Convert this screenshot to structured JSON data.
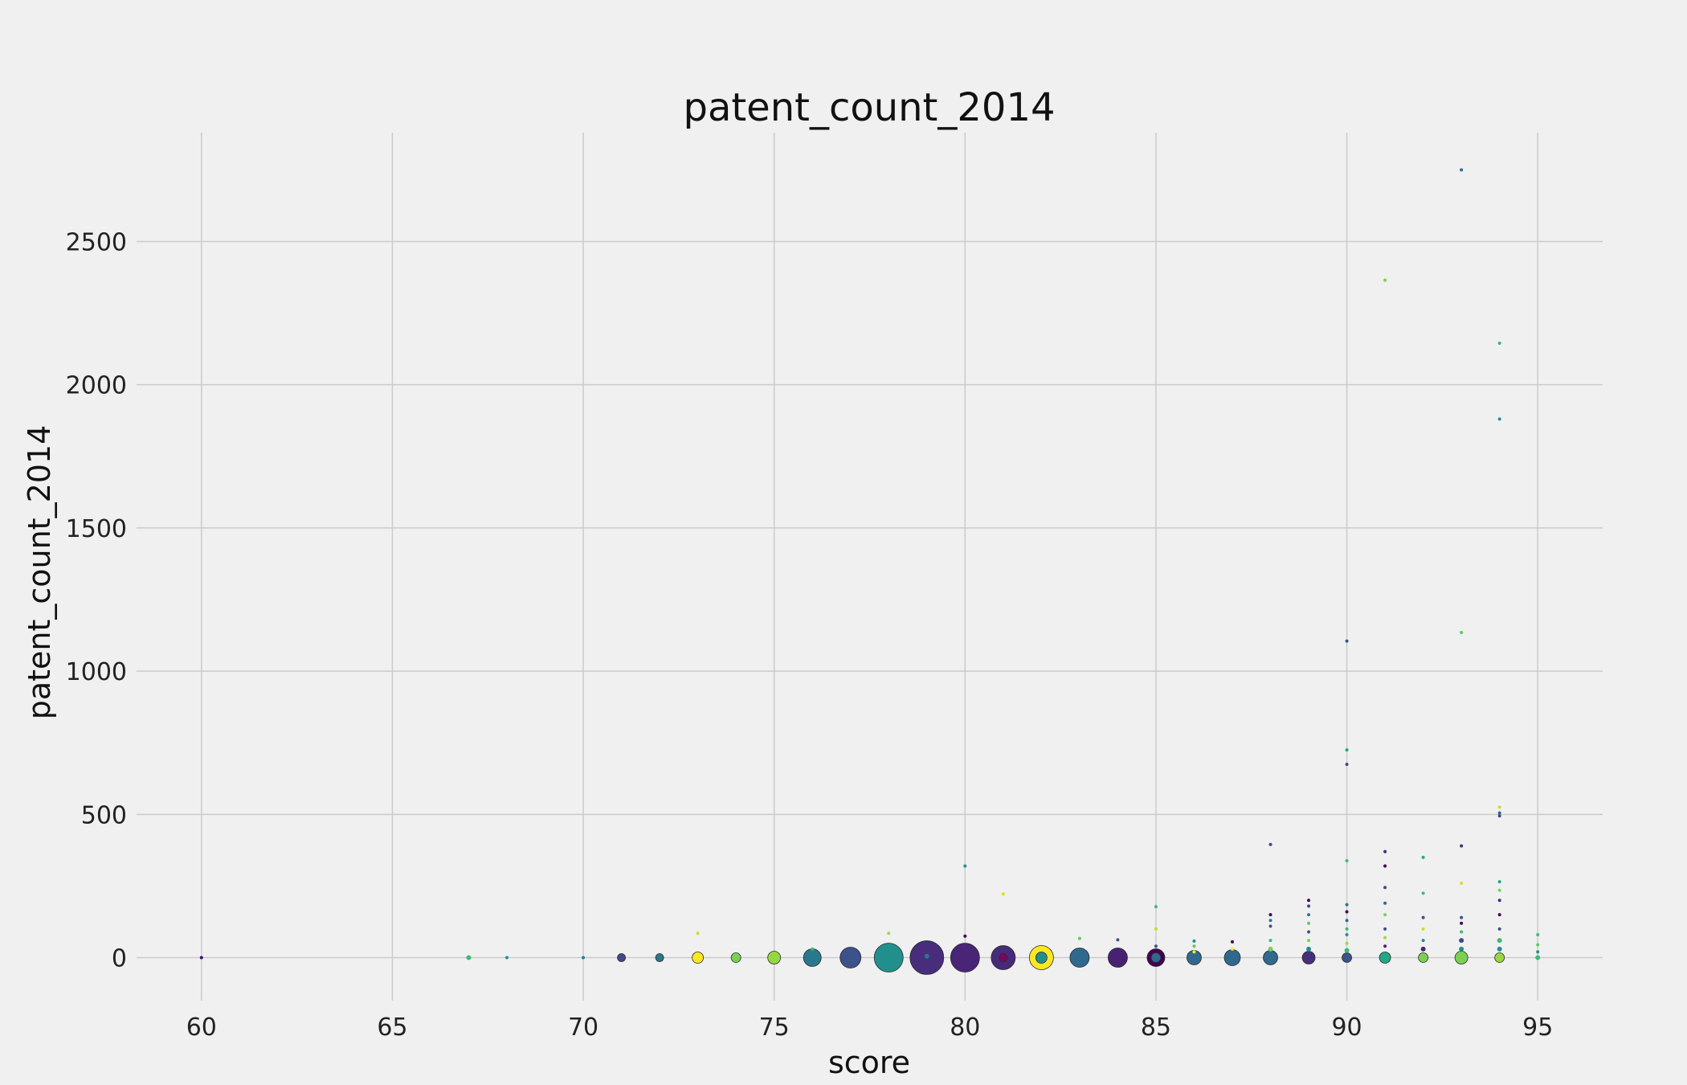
{
  "chart_data": {
    "type": "scatter",
    "title": "patent_count_2014",
    "xlabel": "score",
    "ylabel": "patent_count_2014",
    "xlim": [
      58.3,
      96.7
    ],
    "ylim": [
      -150,
      2880
    ],
    "x_ticks": [
      60,
      65,
      70,
      75,
      80,
      85,
      90,
      95
    ],
    "y_ticks": [
      0,
      500,
      1000,
      1500,
      2000,
      2500
    ],
    "grid": true,
    "colormap": "viridis",
    "points": [
      {
        "x": 60,
        "y": 0,
        "size": 2,
        "color": "#3b0f70"
      },
      {
        "x": 67,
        "y": 0,
        "size": 3,
        "color": "#3bbb75"
      },
      {
        "x": 68,
        "y": 0,
        "size": 2,
        "color": "#21908c"
      },
      {
        "x": 70,
        "y": 0,
        "size": 2,
        "color": "#2a788e"
      },
      {
        "x": 71,
        "y": 0,
        "size": 5,
        "color": "#3e4a89"
      },
      {
        "x": 72,
        "y": 0,
        "size": 5,
        "color": "#2a788e"
      },
      {
        "x": 73,
        "y": 0,
        "size": 7,
        "color": "#fde725"
      },
      {
        "x": 73,
        "y": 85,
        "size": 2,
        "color": "#c8e020"
      },
      {
        "x": 74,
        "y": 0,
        "size": 6,
        "color": "#7ad151"
      },
      {
        "x": 75,
        "y": 0,
        "size": 8,
        "color": "#95d840"
      },
      {
        "x": 76,
        "y": 0,
        "size": 11,
        "color": "#2a788e"
      },
      {
        "x": 76,
        "y": 30,
        "size": 2,
        "color": "#3bbb75"
      },
      {
        "x": 77,
        "y": 0,
        "size": 13,
        "color": "#3b528b"
      },
      {
        "x": 78,
        "y": 0,
        "size": 18,
        "color": "#21908c"
      },
      {
        "x": 78,
        "y": 85,
        "size": 2,
        "color": "#a0da39"
      },
      {
        "x": 79,
        "y": 0,
        "size": 21,
        "color": "#472d7b"
      },
      {
        "x": 79,
        "y": 5,
        "size": 3,
        "color": "#2a788e"
      },
      {
        "x": 80,
        "y": 0,
        "size": 18,
        "color": "#482576"
      },
      {
        "x": 80,
        "y": 75,
        "size": 2,
        "color": "#440154"
      },
      {
        "x": 80,
        "y": 320,
        "size": 2,
        "color": "#21908c"
      },
      {
        "x": 81,
        "y": 0,
        "size": 15,
        "color": "#472a7a"
      },
      {
        "x": 81,
        "y": 0,
        "size": 5,
        "color": "#7d0366"
      },
      {
        "x": 81,
        "y": 222,
        "size": 2,
        "color": "#d8e219"
      },
      {
        "x": 82,
        "y": 0,
        "size": 15,
        "color": "#fde725"
      },
      {
        "x": 82,
        "y": 0,
        "size": 7,
        "color": "#21908c"
      },
      {
        "x": 83,
        "y": 0,
        "size": 12,
        "color": "#31688e"
      },
      {
        "x": 83,
        "y": 67,
        "size": 2,
        "color": "#5ec962"
      },
      {
        "x": 84,
        "y": 0,
        "size": 12,
        "color": "#482173"
      },
      {
        "x": 84,
        "y": 62,
        "size": 2,
        "color": "#3b528b"
      },
      {
        "x": 85,
        "y": 0,
        "size": 11,
        "color": "#440154"
      },
      {
        "x": 85,
        "y": 0,
        "size": 6,
        "color": "#31688e"
      },
      {
        "x": 85,
        "y": 40,
        "size": 2,
        "color": "#3b528b"
      },
      {
        "x": 85,
        "y": 100,
        "size": 2,
        "color": "#c8e020"
      },
      {
        "x": 85,
        "y": 178,
        "size": 2,
        "color": "#3bbb75"
      },
      {
        "x": 86,
        "y": 0,
        "size": 9,
        "color": "#31688e"
      },
      {
        "x": 86,
        "y": 20,
        "size": 2,
        "color": "#fde725"
      },
      {
        "x": 86,
        "y": 40,
        "size": 2,
        "color": "#5ec962"
      },
      {
        "x": 86,
        "y": 58,
        "size": 2,
        "color": "#21908c"
      },
      {
        "x": 87,
        "y": 0,
        "size": 10,
        "color": "#31688e"
      },
      {
        "x": 87,
        "y": 30,
        "size": 2,
        "color": "#fde725"
      },
      {
        "x": 87,
        "y": 55,
        "size": 2,
        "color": "#440154"
      },
      {
        "x": 88,
        "y": 0,
        "size": 9,
        "color": "#31688e"
      },
      {
        "x": 88,
        "y": 30,
        "size": 3,
        "color": "#7ad151"
      },
      {
        "x": 88,
        "y": 60,
        "size": 2,
        "color": "#3bbb75"
      },
      {
        "x": 88,
        "y": 110,
        "size": 2,
        "color": "#3b528b"
      },
      {
        "x": 88,
        "y": 130,
        "size": 2,
        "color": "#2a788e"
      },
      {
        "x": 88,
        "y": 150,
        "size": 2,
        "color": "#440154"
      },
      {
        "x": 88,
        "y": 395,
        "size": 2,
        "color": "#3e4a89"
      },
      {
        "x": 89,
        "y": 0,
        "size": 8,
        "color": "#472d7b"
      },
      {
        "x": 89,
        "y": 30,
        "size": 3,
        "color": "#21908c"
      },
      {
        "x": 89,
        "y": 60,
        "size": 2,
        "color": "#7ad151"
      },
      {
        "x": 89,
        "y": 90,
        "size": 2,
        "color": "#3b528b"
      },
      {
        "x": 89,
        "y": 120,
        "size": 2,
        "color": "#5ec962"
      },
      {
        "x": 89,
        "y": 150,
        "size": 2,
        "color": "#2a788e"
      },
      {
        "x": 89,
        "y": 180,
        "size": 2,
        "color": "#3e4a89"
      },
      {
        "x": 89,
        "y": 200,
        "size": 2,
        "color": "#440154"
      },
      {
        "x": 90,
        "y": 0,
        "size": 6,
        "color": "#3b528b"
      },
      {
        "x": 90,
        "y": 25,
        "size": 3,
        "color": "#3bbb75"
      },
      {
        "x": 90,
        "y": 50,
        "size": 2,
        "color": "#a0da39"
      },
      {
        "x": 90,
        "y": 80,
        "size": 2,
        "color": "#21908c"
      },
      {
        "x": 90,
        "y": 100,
        "size": 2,
        "color": "#3bbb75"
      },
      {
        "x": 90,
        "y": 130,
        "size": 2,
        "color": "#31688e"
      },
      {
        "x": 90,
        "y": 160,
        "size": 2,
        "color": "#440154"
      },
      {
        "x": 90,
        "y": 185,
        "size": 2,
        "color": "#2a788e"
      },
      {
        "x": 90,
        "y": 338,
        "size": 2,
        "color": "#3bbb75"
      },
      {
        "x": 90,
        "y": 675,
        "size": 2,
        "color": "#3e4a89"
      },
      {
        "x": 90,
        "y": 725,
        "size": 2,
        "color": "#22a884"
      },
      {
        "x": 90,
        "y": 1105,
        "size": 2,
        "color": "#3b528b"
      },
      {
        "x": 91,
        "y": 0,
        "size": 7,
        "color": "#22a884"
      },
      {
        "x": 91,
        "y": 40,
        "size": 2,
        "color": "#482576"
      },
      {
        "x": 91,
        "y": 70,
        "size": 2,
        "color": "#a0da39"
      },
      {
        "x": 91,
        "y": 100,
        "size": 2,
        "color": "#3b528b"
      },
      {
        "x": 91,
        "y": 150,
        "size": 2,
        "color": "#7ad151"
      },
      {
        "x": 91,
        "y": 190,
        "size": 2,
        "color": "#31688e"
      },
      {
        "x": 91,
        "y": 245,
        "size": 2,
        "color": "#3e4a89"
      },
      {
        "x": 91,
        "y": 320,
        "size": 2,
        "color": "#440154"
      },
      {
        "x": 91,
        "y": 370,
        "size": 2,
        "color": "#472d7b"
      },
      {
        "x": 91,
        "y": 2365,
        "size": 2,
        "color": "#7ad151"
      },
      {
        "x": 92,
        "y": 0,
        "size": 6,
        "color": "#7ad151"
      },
      {
        "x": 92,
        "y": 30,
        "size": 3,
        "color": "#482576"
      },
      {
        "x": 92,
        "y": 60,
        "size": 2,
        "color": "#21908c"
      },
      {
        "x": 92,
        "y": 100,
        "size": 2,
        "color": "#c8e020"
      },
      {
        "x": 92,
        "y": 140,
        "size": 2,
        "color": "#3b528b"
      },
      {
        "x": 92,
        "y": 225,
        "size": 2,
        "color": "#3bbb75"
      },
      {
        "x": 92,
        "y": 350,
        "size": 2,
        "color": "#22a884"
      },
      {
        "x": 93,
        "y": 0,
        "size": 8,
        "color": "#7ad151"
      },
      {
        "x": 93,
        "y": 30,
        "size": 3,
        "color": "#21908c"
      },
      {
        "x": 93,
        "y": 60,
        "size": 3,
        "color": "#3e4a89"
      },
      {
        "x": 93,
        "y": 90,
        "size": 2,
        "color": "#3bbb75"
      },
      {
        "x": 93,
        "y": 120,
        "size": 2,
        "color": "#440154"
      },
      {
        "x": 93,
        "y": 140,
        "size": 2,
        "color": "#3b528b"
      },
      {
        "x": 93,
        "y": 260,
        "size": 2,
        "color": "#d8e219"
      },
      {
        "x": 93,
        "y": 390,
        "size": 2,
        "color": "#472d7b"
      },
      {
        "x": 93,
        "y": 1135,
        "size": 2,
        "color": "#5ec962"
      },
      {
        "x": 93,
        "y": 2750,
        "size": 2,
        "color": "#31688e"
      },
      {
        "x": 94,
        "y": 0,
        "size": 6,
        "color": "#95d840"
      },
      {
        "x": 94,
        "y": 30,
        "size": 3,
        "color": "#21908c"
      },
      {
        "x": 94,
        "y": 60,
        "size": 3,
        "color": "#3bbb75"
      },
      {
        "x": 94,
        "y": 100,
        "size": 2,
        "color": "#3b528b"
      },
      {
        "x": 94,
        "y": 150,
        "size": 2,
        "color": "#440154"
      },
      {
        "x": 94,
        "y": 200,
        "size": 2,
        "color": "#472d7b"
      },
      {
        "x": 94,
        "y": 235,
        "size": 2,
        "color": "#7ad151"
      },
      {
        "x": 94,
        "y": 265,
        "size": 2,
        "color": "#22a884"
      },
      {
        "x": 94,
        "y": 495,
        "size": 2,
        "color": "#3e4a89"
      },
      {
        "x": 94,
        "y": 505,
        "size": 2,
        "color": "#31688e"
      },
      {
        "x": 94,
        "y": 525,
        "size": 2,
        "color": "#c8e020"
      },
      {
        "x": 94,
        "y": 1880,
        "size": 2,
        "color": "#21908c"
      },
      {
        "x": 94,
        "y": 2145,
        "size": 2,
        "color": "#3bbb75"
      },
      {
        "x": 95,
        "y": 0,
        "size": 3,
        "color": "#3bbb75"
      },
      {
        "x": 95,
        "y": 20,
        "size": 2,
        "color": "#21908c"
      },
      {
        "x": 95,
        "y": 45,
        "size": 2,
        "color": "#5ec962"
      },
      {
        "x": 95,
        "y": 80,
        "size": 2,
        "color": "#3bbb75"
      }
    ]
  }
}
